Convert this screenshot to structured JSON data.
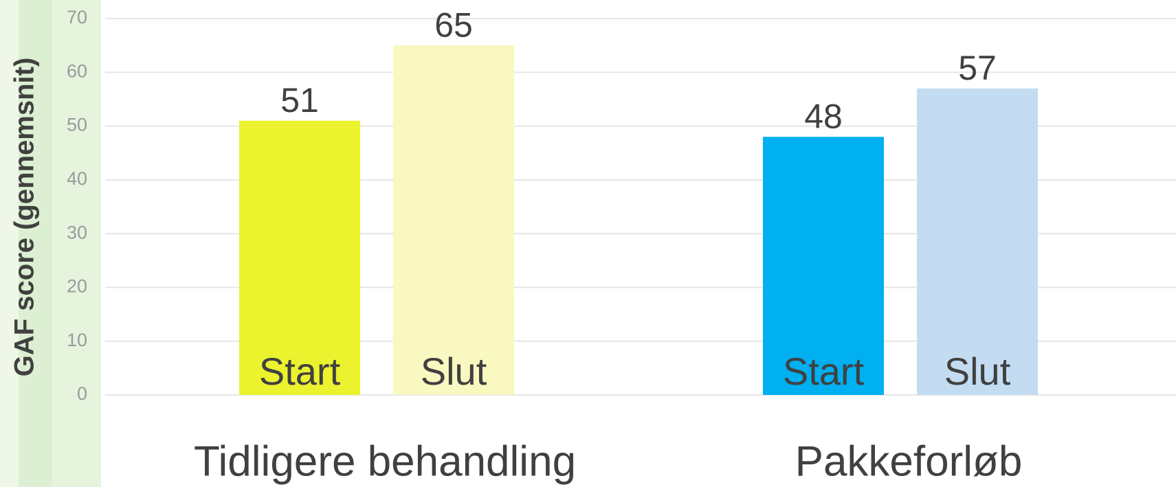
{
  "chart_data": {
    "type": "bar",
    "y_label": "GAF score (gennemsnit)",
    "categories": [
      "Tidligere behandling",
      "Pakkeforløb"
    ],
    "series": [
      {
        "name": "Start",
        "values": [
          51,
          48
        ],
        "colors": [
          "#ebf22e",
          "#00b0f0"
        ]
      },
      {
        "name": "Slut",
        "values": [
          65,
          57
        ],
        "colors": [
          "#f8f8c0",
          "#c4dcf2"
        ]
      }
    ],
    "ylim": [
      0,
      70
    ],
    "yticks": [
      0,
      10,
      20,
      30,
      40,
      50,
      60,
      70
    ],
    "grid": true
  }
}
